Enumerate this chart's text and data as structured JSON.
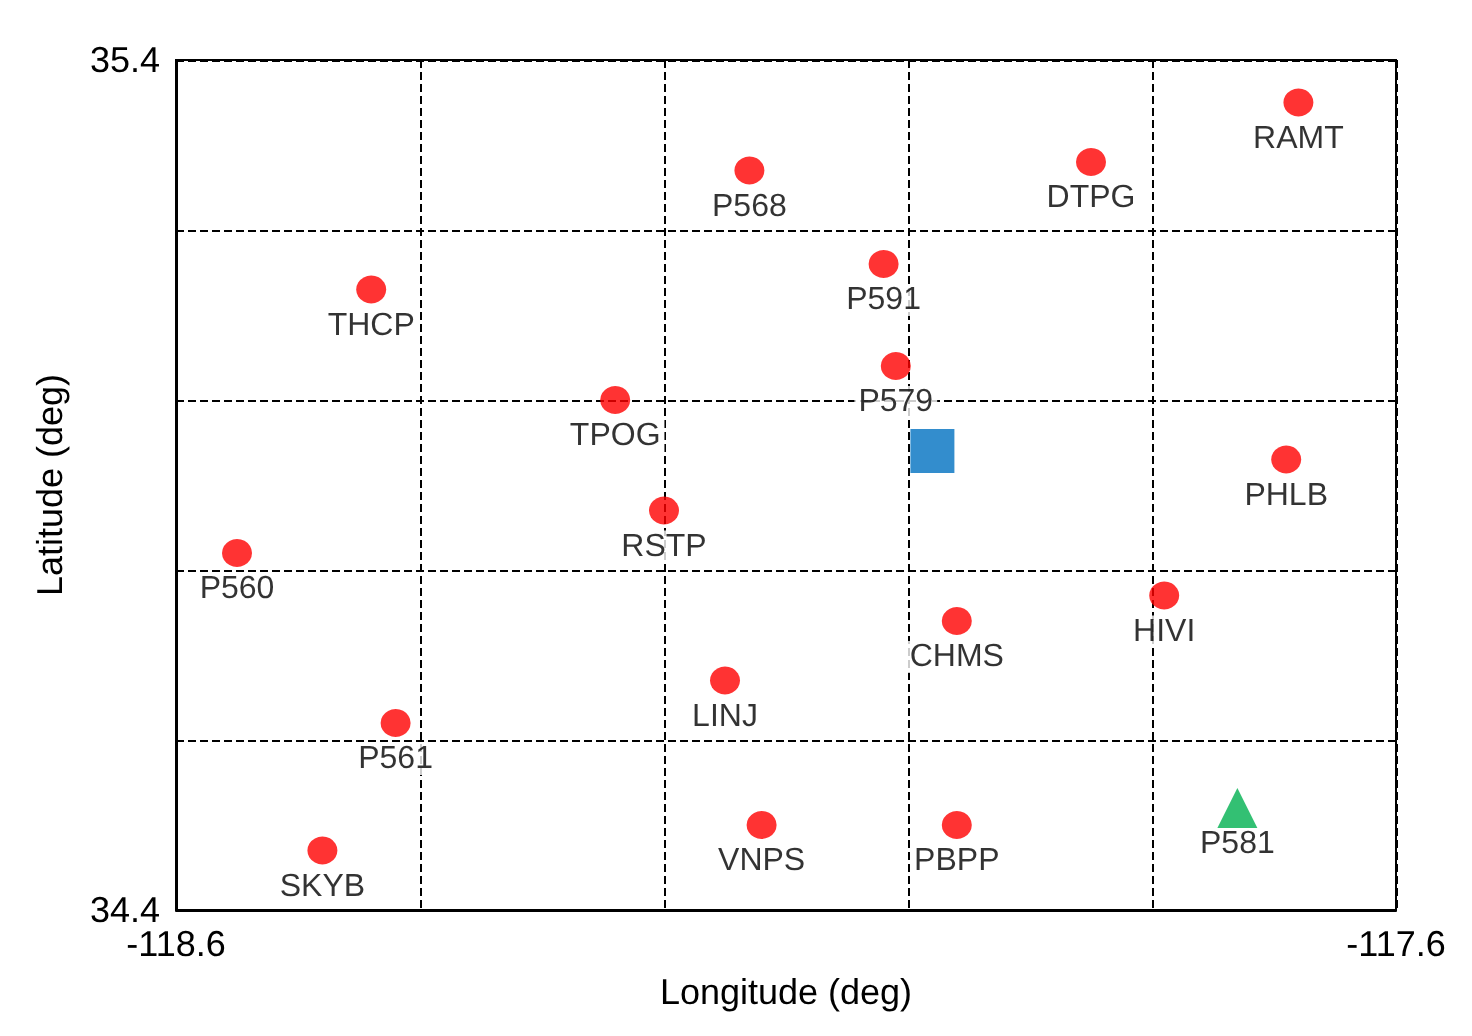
{
  "chart_data": {
    "type": "scatter",
    "xlabel": "Longitude (deg)",
    "ylabel": "Latitude (deg)",
    "xlim": [
      -118.6,
      -117.6
    ],
    "ylim": [
      34.4,
      35.4
    ],
    "xticks": [
      -118.6,
      {
        "value": -118.4,
        "label": null
      },
      {
        "value": -118.2,
        "label": null
      },
      {
        "value": -118.0,
        "label": null
      },
      {
        "value": -117.8,
        "label": null
      },
      -117.6
    ],
    "yticks": [
      34.4,
      {
        "value": 34.6,
        "label": null
      },
      {
        "value": 34.8,
        "label": null
      },
      {
        "value": 35.0,
        "label": null
      },
      {
        "value": 35.2,
        "label": null
      },
      35.4
    ],
    "grid": true,
    "series": [
      {
        "color": "#ff0000",
        "marker": "circle",
        "x": [
          -117.68,
          -117.85,
          -118.13,
          -118.02,
          -118.44,
          -118.01,
          -118.24,
          -117.69,
          -118.2,
          -118.55,
          -117.79,
          -117.96,
          -118.15,
          -118.42,
          -118.48,
          -118.12,
          -117.96
        ],
        "values": [
          35.35,
          35.28,
          35.27,
          35.16,
          35.13,
          35.04,
          35.0,
          34.93,
          34.87,
          34.82,
          34.77,
          34.74,
          34.67,
          34.62,
          34.47,
          34.5,
          34.5
        ]
      },
      {
        "color": "#0070c0",
        "marker": "square",
        "x": [
          -117.98
        ],
        "values": [
          34.94
        ]
      },
      {
        "color": "#00b050",
        "marker": "triangle",
        "x": [
          -117.73
        ],
        "values": [
          34.52
        ]
      }
    ],
    "annotations": [
      {
        "text": "RAMT",
        "x": -117.68,
        "y": 35.35
      },
      {
        "text": "DTPG",
        "x": -117.85,
        "y": 35.28
      },
      {
        "text": "P568",
        "x": -118.13,
        "y": 35.27
      },
      {
        "text": "P591",
        "x": -118.02,
        "y": 35.16
      },
      {
        "text": "THCP",
        "x": -118.44,
        "y": 35.13
      },
      {
        "text": "P579",
        "x": -118.01,
        "y": 35.04
      },
      {
        "text": "TPOG",
        "x": -118.24,
        "y": 35.0
      },
      {
        "text": "PHLB",
        "x": -117.69,
        "y": 34.93
      },
      {
        "text": "RSTP",
        "x": -118.2,
        "y": 34.87
      },
      {
        "text": "P560",
        "x": -118.55,
        "y": 34.82
      },
      {
        "text": "HIVI",
        "x": -117.79,
        "y": 34.77
      },
      {
        "text": "CHMS",
        "x": -117.96,
        "y": 34.74
      },
      {
        "text": "LINJ",
        "x": -118.15,
        "y": 34.67
      },
      {
        "text": "P561",
        "x": -118.42,
        "y": 34.62
      },
      {
        "text": "SKYB",
        "x": -118.48,
        "y": 34.47
      },
      {
        "text": "VNPS",
        "x": -118.12,
        "y": 34.5
      },
      {
        "text": "PBPP",
        "x": -117.96,
        "y": 34.5
      },
      {
        "text": "P581",
        "x": -117.73,
        "y": 34.52
      }
    ]
  }
}
